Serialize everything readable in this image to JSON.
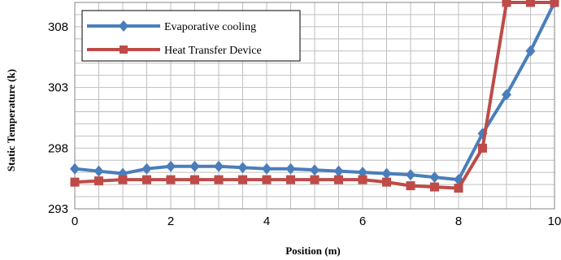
{
  "chart_data": {
    "type": "line",
    "title": "",
    "xlabel": "Position (m)",
    "ylabel": "Static Temperature (k)",
    "xlim": [
      0,
      10
    ],
    "ylim": [
      293,
      310
    ],
    "x_ticks": [
      0,
      2,
      4,
      6,
      8,
      10
    ],
    "y_ticks": [
      293,
      298,
      303,
      308
    ],
    "grid": true,
    "legend_position": "top-left",
    "x": [
      0,
      0.5,
      1,
      1.5,
      2,
      2.5,
      3,
      3.5,
      4,
      4.5,
      5,
      5.5,
      6,
      6.5,
      7,
      7.5,
      8,
      8.5,
      9,
      9.5,
      10
    ],
    "series": [
      {
        "name": "Evaporative cooling",
        "color": "#4a7ebb",
        "marker": "diamond",
        "values": [
          296.3,
          296.1,
          295.9,
          296.3,
          296.5,
          296.5,
          296.5,
          296.4,
          296.3,
          296.3,
          296.2,
          296.1,
          296.0,
          295.9,
          295.8,
          295.6,
          295.4,
          299.2,
          302.4,
          306.0,
          310.0
        ]
      },
      {
        "name": "Heat Transfer Device",
        "color": "#be4b48",
        "marker": "square",
        "values": [
          295.2,
          295.3,
          295.4,
          295.4,
          295.4,
          295.4,
          295.4,
          295.4,
          295.4,
          295.4,
          295.4,
          295.4,
          295.4,
          295.2,
          294.9,
          294.8,
          294.7,
          298.0,
          310.0,
          310.0,
          310.0
        ]
      }
    ]
  }
}
